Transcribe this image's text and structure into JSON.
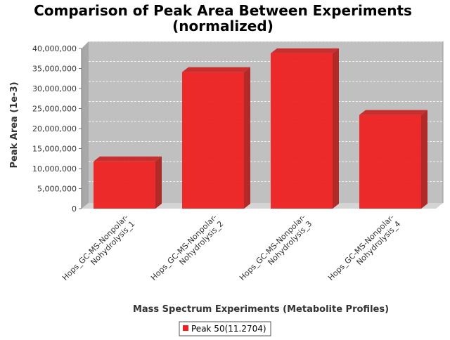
{
  "chart_data": {
    "type": "bar",
    "title_lines": [
      "Comparison of Peak Area Between Experiments",
      "(normalized)"
    ],
    "xlabel": "Mass Spectrum Experiments (Metabolite Profiles)",
    "ylabel": "Peak Area (1e-3)",
    "ylim": [
      0,
      40000000
    ],
    "yticks": [
      0,
      5000000,
      10000000,
      15000000,
      20000000,
      25000000,
      30000000,
      35000000,
      40000000
    ],
    "ytick_labels": [
      "0",
      "5,000,000",
      "10,000,000",
      "15,000,000",
      "20,000,000",
      "25,000,000",
      "30,000,000",
      "35,000,000",
      "40,000,000"
    ],
    "categories": [
      [
        "Hops_GC-MS-Nonpolar-",
        "Nohydrolysis_1"
      ],
      [
        "Hops_GC-MS-Nonpolar-",
        "Nohydrolysis_2"
      ],
      [
        "Hops_GC-MS-Nonpolar-",
        "Nohydrolysis_3"
      ],
      [
        "Hops_GC-MS-Nonpolar-",
        "Nohydrolysis_4"
      ]
    ],
    "series": [
      {
        "name": "Peak 50(11.2704)",
        "color": "#ee2222",
        "values": [
          11800000,
          34100000,
          38800000,
          23400000
        ]
      }
    ],
    "grid": true,
    "legend_position": "bottom-center",
    "plot_background": "#c0c0c0"
  }
}
